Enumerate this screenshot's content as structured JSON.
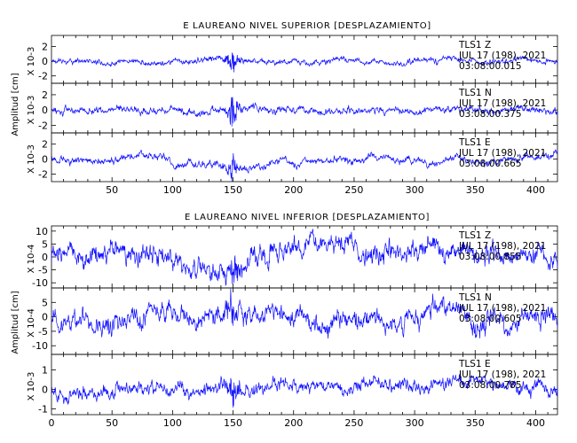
{
  "figures": [
    {
      "title": "E LAUREANO NIVEL SUPERIOR [DESPLAZAMIENTO]",
      "ylabel": "Amplitud [cm]",
      "show_xticks": true,
      "channels": [
        {
          "scale": "X 10-3",
          "yticks": [
            2,
            0,
            -2
          ],
          "ylim": [
            -3,
            3.5
          ],
          "amp": 0.45,
          "sta": "TLS1",
          "cmp": "Z",
          "date": "JUL 17 (198), 2021",
          "time": "03:08:00.015",
          "burst": 1.8
        },
        {
          "scale": "X 10-3",
          "yticks": [
            2,
            0,
            -2
          ],
          "ylim": [
            -3,
            3.5
          ],
          "amp": 0.55,
          "sta": "TLS1",
          "cmp": "N",
          "date": "JUL 17 (198), 2021",
          "time": "03:08:00.375",
          "burst": 1.6
        },
        {
          "scale": "X 10-3",
          "yticks": [
            2,
            0,
            -2
          ],
          "ylim": [
            -3,
            3.5
          ],
          "amp": 0.55,
          "sta": "TLS1",
          "cmp": "E",
          "date": "JUL 17 (198), 2021",
          "time": "03:08:00.665",
          "burst": 1.6
        }
      ]
    },
    {
      "title": "E LAUREANO NIVEL INFERIOR [DESPLAZAMIENTO]",
      "ylabel": "Amplitud [cm]",
      "show_xticks": true,
      "channels": [
        {
          "scale": "X 10-4",
          "yticks": [
            10,
            5,
            0,
            -5,
            -10
          ],
          "ylim": [
            -12,
            12
          ],
          "amp": 4.5,
          "sta": "TLS1",
          "cmp": "Z",
          "date": "JUL 17 (198), 2021",
          "time": "03:08:00.855",
          "burst": 5.5
        },
        {
          "scale": "X 10-4",
          "yticks": [
            5,
            0,
            -5,
            -10
          ],
          "ylim": [
            -13,
            10
          ],
          "amp": 4.0,
          "sta": "TLS1",
          "cmp": "N",
          "date": "JUL 17 (198), 2021",
          "time": "03:08:00.605",
          "burst": 5.5
        },
        {
          "scale": "X 10-3",
          "yticks": [
            1,
            0,
            -1
          ],
          "ylim": [
            -1.3,
            1.8
          ],
          "amp": 0.4,
          "sta": "TLS1",
          "cmp": "E",
          "date": "JUL 17 (198), 2021",
          "time": "03:08:00.785",
          "burst": 0.8
        }
      ]
    }
  ],
  "chart_data": {
    "type": "line",
    "x_ticks": [
      0,
      50,
      100,
      150,
      200,
      250,
      300,
      350,
      400
    ],
    "xlim": [
      0,
      418
    ],
    "grid": false,
    "series_color": "#1010ff",
    "event_x": 150
  }
}
